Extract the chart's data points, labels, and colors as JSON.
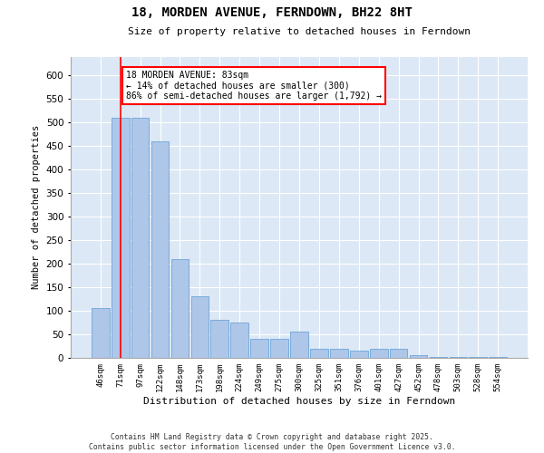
{
  "title": "18, MORDEN AVENUE, FERNDOWN, BH22 8HT",
  "subtitle": "Size of property relative to detached houses in Ferndown",
  "xlabel": "Distribution of detached houses by size in Ferndown",
  "ylabel": "Number of detached properties",
  "bar_labels": [
    "46sqm",
    "71sqm",
    "97sqm",
    "122sqm",
    "148sqm",
    "173sqm",
    "198sqm",
    "224sqm",
    "249sqm",
    "275sqm",
    "300sqm",
    "325sqm",
    "351sqm",
    "376sqm",
    "401sqm",
    "427sqm",
    "452sqm",
    "478sqm",
    "503sqm",
    "528sqm",
    "554sqm"
  ],
  "bar_values": [
    105,
    510,
    510,
    460,
    210,
    130,
    80,
    75,
    40,
    40,
    55,
    20,
    20,
    15,
    20,
    20,
    5,
    2,
    2,
    2,
    2
  ],
  "bar_color": "#aec6e8",
  "bar_edge_color": "#5b9bd5",
  "vline_x": 1.0,
  "vline_color": "red",
  "annotation_title": "18 MORDEN AVENUE: 83sqm",
  "annotation_line1": "← 14% of detached houses are smaller (300)",
  "annotation_line2": "86% of semi-detached houses are larger (1,792) →",
  "annotation_box_color": "white",
  "annotation_box_edge": "red",
  "ylim": [
    0,
    640
  ],
  "yticks": [
    0,
    50,
    100,
    150,
    200,
    250,
    300,
    350,
    400,
    450,
    500,
    550,
    600
  ],
  "background_color": "#dce8f5",
  "grid_color": "white",
  "footer1": "Contains HM Land Registry data © Crown copyright and database right 2025.",
  "footer2": "Contains public sector information licensed under the Open Government Licence v3.0."
}
